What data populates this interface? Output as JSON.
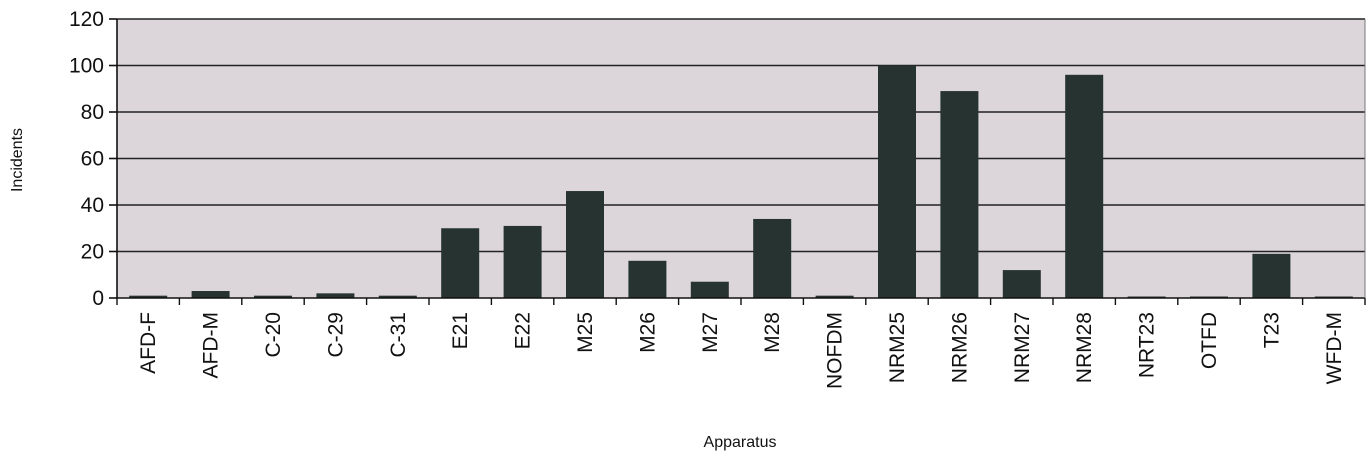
{
  "chart_data": {
    "type": "bar",
    "title": "",
    "xlabel": "Apparatus",
    "ylabel": "Incidents",
    "ylim": [
      0,
      120
    ],
    "yticks": [
      0,
      20,
      40,
      60,
      80,
      100,
      120
    ],
    "grid": true,
    "legend": "none",
    "categories": [
      "AFD-F",
      "AFD-M",
      "C-20",
      "C-29",
      "C-31",
      "E21",
      "E22",
      "M25",
      "M26",
      "M27",
      "M28",
      "NOFDM",
      "NRM25",
      "NRM26",
      "NRM27",
      "NRM28",
      "NRT23",
      "OTFD",
      "T23",
      "WFD-M"
    ],
    "values": [
      1,
      3,
      1,
      2,
      1,
      30,
      31,
      46,
      16,
      7,
      34,
      1,
      100,
      89,
      12,
      96,
      0,
      0,
      19,
      0
    ],
    "colors": {
      "bar": "#273330",
      "plot_background": "#dcd6db",
      "gridline": "#222222",
      "axis": "#111111",
      "text": "#111111"
    }
  }
}
